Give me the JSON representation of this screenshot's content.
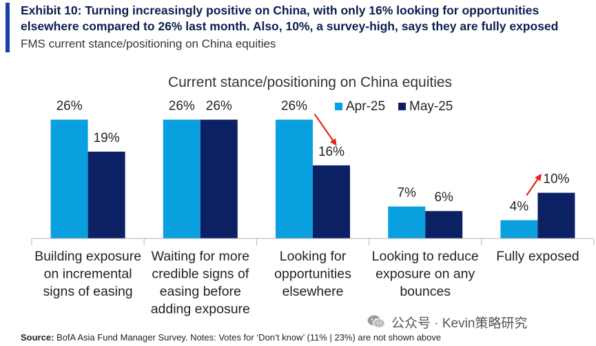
{
  "exhibit": {
    "title": "Exhibit 10: Turning increasingly positive on China, with only 16% looking for opportunities elsewhere compared to 26% last month. Also, 10%, a survey-high, says they are fully exposed",
    "subtitle": "FMS current stance/positioning on China equities"
  },
  "colors": {
    "accent": "#1a3fa6",
    "apr": "#0aa0df",
    "may": "#0c2064",
    "arrow": "#e8231f"
  },
  "chart_data": {
    "type": "bar",
    "title": "Current stance/positioning on China equities",
    "categories": [
      [
        "Building exposure",
        "on incremental",
        "signs of easing"
      ],
      [
        "Waiting for more",
        "credible signs of",
        "easing before",
        "adding exposure"
      ],
      [
        "Looking for",
        "opportunities",
        "elsewhere"
      ],
      [
        "Looking to reduce",
        "exposure on any",
        "bounces"
      ],
      [
        "Fully exposed"
      ]
    ],
    "series": [
      {
        "name": "Apr-25",
        "values": [
          26,
          26,
          26,
          7,
          4
        ],
        "labels": [
          "26%",
          "26%",
          "26%",
          "7%",
          "4%"
        ]
      },
      {
        "name": "May-25",
        "values": [
          19,
          26,
          16,
          6,
          10
        ],
        "labels": [
          "19%",
          "26%",
          "16%",
          "6%",
          "10%"
        ]
      }
    ],
    "ylim": [
      0,
      30
    ],
    "grid": false,
    "legend": "top-right",
    "annotations": [
      {
        "type": "arrow",
        "category": 2,
        "direction": "down"
      },
      {
        "type": "arrow",
        "category": 4,
        "direction": "up"
      }
    ]
  },
  "source": {
    "label": "Source:",
    "text": " BofA Asia Fund Manager Survey. Notes: Votes for ‘Don’t know’ (11% | 23%) are not shown above"
  },
  "watermark": {
    "text": "公众号 · Kevin策略研究",
    "icon": "wechat-icon"
  }
}
